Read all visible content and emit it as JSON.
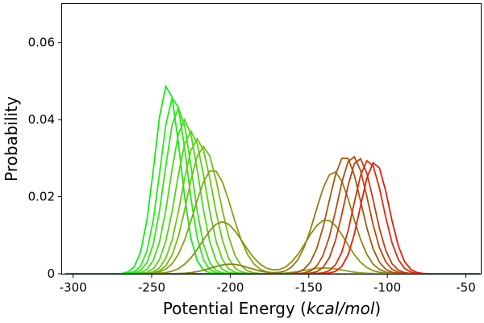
{
  "chart_data": {
    "type": "line",
    "title": "",
    "xlabel_prefix": "Potential Energy (",
    "xlabel_unit": "kcal/mol",
    "xlabel_suffix": ")",
    "ylabel": "Probability",
    "xlim": [
      -307,
      -40
    ],
    "ylim": [
      0,
      0.07
    ],
    "xticks": [
      -300,
      -250,
      -200,
      -150,
      -100,
      -50
    ],
    "xtick_labels": [
      "-300",
      "-250",
      "-200",
      "-150",
      "-100",
      "-50"
    ],
    "yticks": [
      0,
      0.02,
      0.04,
      0.06
    ],
    "ytick_labels": [
      "0",
      "0.02",
      "0.04",
      "0.06"
    ],
    "grid": false,
    "legend": "none",
    "series_note": "",
    "series": [
      {
        "color": "#11ee11",
        "components": [
          {
            "mu": -240,
            "sigma": 8.2,
            "peak": 0.049
          }
        ]
      },
      {
        "color": "#22ee11",
        "components": [
          {
            "mu": -236,
            "sigma": 8.4,
            "peak": 0.046
          }
        ]
      },
      {
        "color": "#33e611",
        "components": [
          {
            "mu": -233,
            "sigma": 8.6,
            "peak": 0.043
          }
        ]
      },
      {
        "color": "#44dd11",
        "components": [
          {
            "mu": -229,
            "sigma": 9.0,
            "peak": 0.04
          }
        ]
      },
      {
        "color": "#55d411",
        "components": [
          {
            "mu": -225,
            "sigma": 9.3,
            "peak": 0.037
          }
        ]
      },
      {
        "color": "#66c811",
        "components": [
          {
            "mu": -221,
            "sigma": 9.6,
            "peak": 0.035
          }
        ]
      },
      {
        "color": "#77bb11",
        "components": [
          {
            "mu": -217,
            "sigma": 10.2,
            "peak": 0.033
          }
        ]
      },
      {
        "color": "#86a411",
        "components": [
          {
            "mu": -211,
            "sigma": 12.0,
            "peak": 0.027
          },
          {
            "mu": -140,
            "sigma": 12.0,
            "peak": 0.0015
          }
        ]
      },
      {
        "color": "#8c9011",
        "components": [
          {
            "mu": -205,
            "sigma": 13.0,
            "peak": 0.0135
          },
          {
            "mu": -139,
            "sigma": 12.5,
            "peak": 0.014
          }
        ]
      },
      {
        "color": "#8c7f11",
        "components": [
          {
            "mu": -200,
            "sigma": 12.0,
            "peak": 0.0025
          },
          {
            "mu": -134,
            "sigma": 11.5,
            "peak": 0.0265
          }
        ]
      },
      {
        "color": "#a05a0e",
        "components": [
          {
            "mu": -127,
            "sigma": 10.2,
            "peak": 0.0305
          }
        ]
      },
      {
        "color": "#b44c0c",
        "components": [
          {
            "mu": -122,
            "sigma": 9.8,
            "peak": 0.0305
          }
        ]
      },
      {
        "color": "#c83c0a",
        "components": [
          {
            "mu": -118,
            "sigma": 9.5,
            "peak": 0.03
          }
        ]
      },
      {
        "color": "#dc2c08",
        "components": [
          {
            "mu": -112,
            "sigma": 9.3,
            "peak": 0.0295
          }
        ]
      },
      {
        "color": "#ee1a06",
        "components": [
          {
            "mu": -108,
            "sigma": 9.0,
            "peak": 0.029
          }
        ]
      }
    ]
  }
}
